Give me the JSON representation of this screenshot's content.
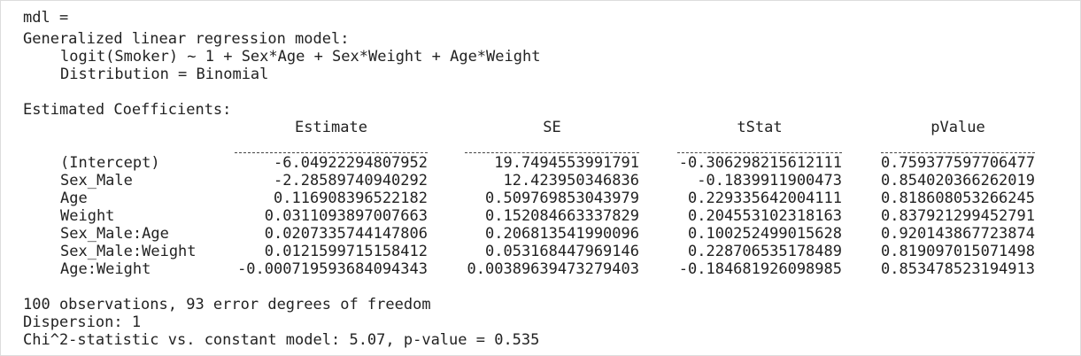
{
  "header": {
    "assign": "mdl =",
    "model_type": "Generalized linear regression model:",
    "formula": "logit(Smoker) ~ 1 + Sex*Age + Sex*Weight + Age*Weight",
    "distribution": "Distribution = Binomial"
  },
  "coefficients": {
    "title": "Estimated Coefficients:",
    "columns": [
      "Estimate",
      "SE",
      "tStat",
      "pValue"
    ],
    "rows": [
      {
        "name": "(Intercept)",
        "values": [
          "-6.04922294807952",
          "19.7494553991791",
          "-0.306298215612111",
          "0.759377597706477"
        ]
      },
      {
        "name": "Sex_Male",
        "values": [
          "-2.28589740940292",
          "12.423950346836",
          "-0.1839911900473",
          "0.854020366262019"
        ]
      },
      {
        "name": "Age",
        "values": [
          "0.116908396522182",
          "0.509769853043979",
          "0.229335642004111",
          "0.818608053266245"
        ]
      },
      {
        "name": "Weight",
        "values": [
          "0.0311093897007663",
          "0.152084663337829",
          "0.204553102318163",
          "0.837921299452791"
        ]
      },
      {
        "name": "Sex_Male:Age",
        "values": [
          "0.0207335744147806",
          "0.206813541990096",
          "0.100252499015628",
          "0.920143867723874"
        ]
      },
      {
        "name": "Sex_Male:Weight",
        "values": [
          "0.0121599715158412",
          "0.053168447969146",
          "0.228706535178489",
          "0.819097015071498"
        ]
      },
      {
        "name": "Age:Weight",
        "values": [
          "-0.000719593684094343",
          "0.00389639473279403",
          "-0.184681926098985",
          "0.853478523194913"
        ]
      }
    ]
  },
  "footer": {
    "observations": "100 observations, 93 error degrees of freedom",
    "dispersion": "Dispersion: 1",
    "chi2": "Chi^2-statistic vs. constant model: 5.07, p-value = 0.535"
  }
}
